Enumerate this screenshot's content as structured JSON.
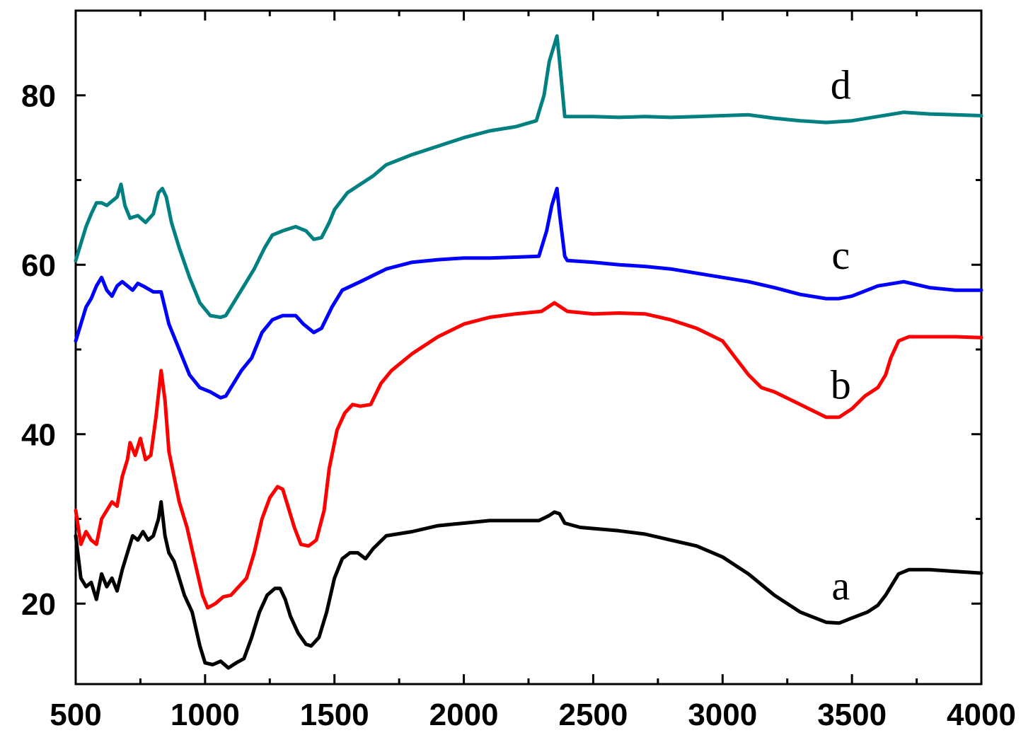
{
  "chart_data": {
    "type": "line",
    "title": "",
    "xlabel": "",
    "ylabel": "",
    "xlim": [
      500,
      4000
    ],
    "ylim": [
      10.5,
      90
    ],
    "grid": false,
    "x_ticks": [
      500,
      1000,
      1500,
      2000,
      2500,
      3000,
      3500,
      4000
    ],
    "y_ticks": [
      20,
      40,
      60,
      80
    ],
    "series": [
      {
        "name": "a",
        "color": "#000000",
        "label_at": [
          3440,
          20.5
        ],
        "points": [
          [
            500,
            28
          ],
          [
            520,
            23
          ],
          [
            540,
            22
          ],
          [
            560,
            22.5
          ],
          [
            580,
            20.5
          ],
          [
            600,
            23.5
          ],
          [
            620,
            22
          ],
          [
            640,
            23
          ],
          [
            660,
            21.5
          ],
          [
            680,
            24
          ],
          [
            700,
            26
          ],
          [
            720,
            28
          ],
          [
            740,
            27.5
          ],
          [
            760,
            28.5
          ],
          [
            780,
            27.5
          ],
          [
            800,
            28
          ],
          [
            820,
            30
          ],
          [
            830,
            32
          ],
          [
            845,
            28
          ],
          [
            860,
            26
          ],
          [
            880,
            25
          ],
          [
            900,
            23
          ],
          [
            920,
            21
          ],
          [
            950,
            19
          ],
          [
            980,
            15
          ],
          [
            1000,
            13
          ],
          [
            1030,
            12.8
          ],
          [
            1060,
            13.2
          ],
          [
            1090,
            12.4
          ],
          [
            1120,
            13
          ],
          [
            1150,
            13.5
          ],
          [
            1180,
            16
          ],
          [
            1210,
            19
          ],
          [
            1240,
            21
          ],
          [
            1270,
            21.8
          ],
          [
            1290,
            21.8
          ],
          [
            1310,
            20.5
          ],
          [
            1330,
            18.5
          ],
          [
            1360,
            16.5
          ],
          [
            1390,
            15.2
          ],
          [
            1410,
            15
          ],
          [
            1440,
            16
          ],
          [
            1470,
            19
          ],
          [
            1500,
            23
          ],
          [
            1530,
            25.3
          ],
          [
            1560,
            26
          ],
          [
            1590,
            26
          ],
          [
            1620,
            25.3
          ],
          [
            1650,
            26.5
          ],
          [
            1700,
            28
          ],
          [
            1800,
            28.5
          ],
          [
            1900,
            29.2
          ],
          [
            2000,
            29.5
          ],
          [
            2100,
            29.8
          ],
          [
            2200,
            29.8
          ],
          [
            2290,
            29.8
          ],
          [
            2330,
            30.4
          ],
          [
            2350,
            30.8
          ],
          [
            2370,
            30.6
          ],
          [
            2390,
            29.5
          ],
          [
            2450,
            29
          ],
          [
            2600,
            28.6
          ],
          [
            2700,
            28.2
          ],
          [
            2800,
            27.5
          ],
          [
            2900,
            26.8
          ],
          [
            3000,
            25.5
          ],
          [
            3100,
            23.5
          ],
          [
            3200,
            21
          ],
          [
            3300,
            19
          ],
          [
            3400,
            17.8
          ],
          [
            3450,
            17.7
          ],
          [
            3500,
            18.3
          ],
          [
            3560,
            19
          ],
          [
            3600,
            19.8
          ],
          [
            3630,
            21
          ],
          [
            3650,
            22
          ],
          [
            3680,
            23.5
          ],
          [
            3720,
            24
          ],
          [
            3800,
            24
          ],
          [
            3900,
            23.8
          ],
          [
            4000,
            23.6
          ]
        ]
      },
      {
        "name": "b",
        "color": "#ff0000",
        "label_at": [
          3440,
          44.2
        ],
        "points": [
          [
            500,
            31
          ],
          [
            520,
            27
          ],
          [
            540,
            28.5
          ],
          [
            560,
            27.5
          ],
          [
            580,
            27
          ],
          [
            600,
            30
          ],
          [
            620,
            31
          ],
          [
            640,
            32
          ],
          [
            660,
            31.5
          ],
          [
            680,
            35
          ],
          [
            700,
            37
          ],
          [
            710,
            39
          ],
          [
            730,
            37.5
          ],
          [
            750,
            39.5
          ],
          [
            770,
            37
          ],
          [
            790,
            37.5
          ],
          [
            810,
            42
          ],
          [
            830,
            47.5
          ],
          [
            845,
            44
          ],
          [
            860,
            38
          ],
          [
            880,
            35
          ],
          [
            900,
            32
          ],
          [
            930,
            29
          ],
          [
            960,
            25
          ],
          [
            990,
            21
          ],
          [
            1010,
            19.5
          ],
          [
            1040,
            20
          ],
          [
            1070,
            20.8
          ],
          [
            1100,
            21
          ],
          [
            1130,
            22
          ],
          [
            1160,
            23
          ],
          [
            1190,
            26
          ],
          [
            1220,
            30
          ],
          [
            1250,
            32.5
          ],
          [
            1280,
            33.8
          ],
          [
            1300,
            33.5
          ],
          [
            1320,
            31.5
          ],
          [
            1345,
            29
          ],
          [
            1370,
            27
          ],
          [
            1400,
            26.8
          ],
          [
            1430,
            27.5
          ],
          [
            1460,
            31
          ],
          [
            1480,
            36
          ],
          [
            1510,
            40.5
          ],
          [
            1540,
            42.5
          ],
          [
            1570,
            43.5
          ],
          [
            1600,
            43.3
          ],
          [
            1640,
            43.5
          ],
          [
            1680,
            46
          ],
          [
            1720,
            47.5
          ],
          [
            1800,
            49.5
          ],
          [
            1900,
            51.5
          ],
          [
            2000,
            53
          ],
          [
            2100,
            53.8
          ],
          [
            2200,
            54.2
          ],
          [
            2300,
            54.5
          ],
          [
            2350,
            55.5
          ],
          [
            2400,
            54.5
          ],
          [
            2500,
            54.2
          ],
          [
            2600,
            54.3
          ],
          [
            2700,
            54.2
          ],
          [
            2800,
            53.5
          ],
          [
            2900,
            52.5
          ],
          [
            3000,
            51
          ],
          [
            3050,
            49
          ],
          [
            3100,
            47
          ],
          [
            3150,
            45.5
          ],
          [
            3200,
            45
          ],
          [
            3300,
            43.5
          ],
          [
            3400,
            42
          ],
          [
            3450,
            42
          ],
          [
            3500,
            43
          ],
          [
            3550,
            44.5
          ],
          [
            3600,
            45.5
          ],
          [
            3630,
            47
          ],
          [
            3650,
            49
          ],
          [
            3680,
            51
          ],
          [
            3720,
            51.5
          ],
          [
            3800,
            51.5
          ],
          [
            3900,
            51.5
          ],
          [
            4000,
            51.4
          ]
        ]
      },
      {
        "name": "c",
        "color": "#0000ff",
        "label_at": [
          3440,
          59.5
        ],
        "points": [
          [
            500,
            51
          ],
          [
            520,
            53
          ],
          [
            540,
            55
          ],
          [
            560,
            56
          ],
          [
            580,
            57.5
          ],
          [
            600,
            58.5
          ],
          [
            620,
            57
          ],
          [
            640,
            56.3
          ],
          [
            660,
            57.5
          ],
          [
            680,
            58
          ],
          [
            700,
            57.5
          ],
          [
            720,
            57
          ],
          [
            740,
            57.8
          ],
          [
            760,
            57.5
          ],
          [
            800,
            56.8
          ],
          [
            830,
            56.8
          ],
          [
            860,
            53
          ],
          [
            900,
            50
          ],
          [
            940,
            47
          ],
          [
            980,
            45.5
          ],
          [
            1020,
            45
          ],
          [
            1060,
            44.3
          ],
          [
            1080,
            44.5
          ],
          [
            1110,
            46
          ],
          [
            1140,
            47.5
          ],
          [
            1180,
            49
          ],
          [
            1220,
            52
          ],
          [
            1260,
            53.5
          ],
          [
            1300,
            54
          ],
          [
            1350,
            54
          ],
          [
            1380,
            53
          ],
          [
            1420,
            52
          ],
          [
            1450,
            52.5
          ],
          [
            1490,
            55
          ],
          [
            1530,
            57
          ],
          [
            1600,
            58
          ],
          [
            1700,
            59.5
          ],
          [
            1800,
            60.3
          ],
          [
            1900,
            60.6
          ],
          [
            2000,
            60.8
          ],
          [
            2100,
            60.8
          ],
          [
            2200,
            60.9
          ],
          [
            2290,
            61
          ],
          [
            2320,
            64
          ],
          [
            2340,
            67
          ],
          [
            2360,
            69
          ],
          [
            2370,
            66
          ],
          [
            2390,
            61
          ],
          [
            2400,
            60.5
          ],
          [
            2500,
            60.3
          ],
          [
            2600,
            60
          ],
          [
            2700,
            59.8
          ],
          [
            2800,
            59.5
          ],
          [
            2900,
            59
          ],
          [
            3000,
            58.5
          ],
          [
            3100,
            58
          ],
          [
            3200,
            57.3
          ],
          [
            3300,
            56.5
          ],
          [
            3400,
            56
          ],
          [
            3450,
            56
          ],
          [
            3500,
            56.3
          ],
          [
            3600,
            57.5
          ],
          [
            3700,
            58
          ],
          [
            3800,
            57.3
          ],
          [
            3900,
            57
          ],
          [
            4000,
            57
          ]
        ]
      },
      {
        "name": "d",
        "color": "#008080",
        "label_at": [
          3440,
          79.6
        ],
        "points": [
          [
            500,
            60.5
          ],
          [
            520,
            62.5
          ],
          [
            540,
            64.5
          ],
          [
            560,
            66
          ],
          [
            580,
            67.3
          ],
          [
            600,
            67.3
          ],
          [
            620,
            67
          ],
          [
            640,
            67.5
          ],
          [
            660,
            68
          ],
          [
            675,
            69.5
          ],
          [
            690,
            67
          ],
          [
            710,
            65.5
          ],
          [
            740,
            65.8
          ],
          [
            770,
            65
          ],
          [
            800,
            66
          ],
          [
            820,
            68.5
          ],
          [
            835,
            69
          ],
          [
            850,
            68
          ],
          [
            870,
            65
          ],
          [
            900,
            62
          ],
          [
            940,
            58.5
          ],
          [
            980,
            55.5
          ],
          [
            1020,
            54
          ],
          [
            1060,
            53.8
          ],
          [
            1080,
            54
          ],
          [
            1110,
            55.5
          ],
          [
            1150,
            57.5
          ],
          [
            1190,
            59.5
          ],
          [
            1230,
            62
          ],
          [
            1260,
            63.5
          ],
          [
            1300,
            64
          ],
          [
            1350,
            64.5
          ],
          [
            1390,
            64
          ],
          [
            1420,
            63
          ],
          [
            1450,
            63.2
          ],
          [
            1480,
            65
          ],
          [
            1500,
            66.5
          ],
          [
            1550,
            68.5
          ],
          [
            1600,
            69.5
          ],
          [
            1650,
            70.5
          ],
          [
            1700,
            71.8
          ],
          [
            1800,
            73
          ],
          [
            1900,
            74
          ],
          [
            2000,
            75
          ],
          [
            2100,
            75.8
          ],
          [
            2200,
            76.3
          ],
          [
            2280,
            77
          ],
          [
            2310,
            80
          ],
          [
            2330,
            84
          ],
          [
            2350,
            86
          ],
          [
            2360,
            87
          ],
          [
            2370,
            84
          ],
          [
            2390,
            77.5
          ],
          [
            2400,
            77.5
          ],
          [
            2500,
            77.5
          ],
          [
            2600,
            77.4
          ],
          [
            2700,
            77.5
          ],
          [
            2800,
            77.4
          ],
          [
            2900,
            77.5
          ],
          [
            3000,
            77.6
          ],
          [
            3100,
            77.7
          ],
          [
            3200,
            77.3
          ],
          [
            3300,
            77
          ],
          [
            3400,
            76.8
          ],
          [
            3500,
            77
          ],
          [
            3600,
            77.5
          ],
          [
            3700,
            78
          ],
          [
            3800,
            77.8
          ],
          [
            3900,
            77.7
          ],
          [
            4000,
            77.6
          ]
        ]
      }
    ]
  }
}
